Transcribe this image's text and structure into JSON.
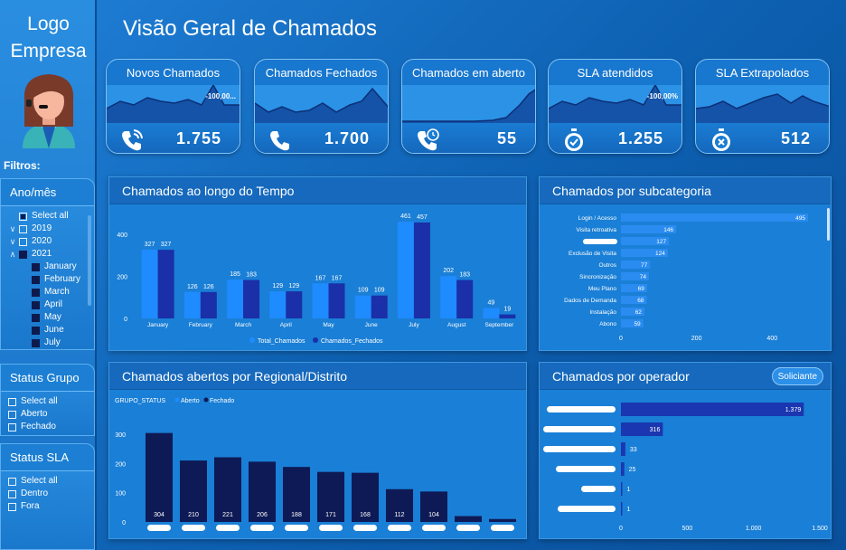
{
  "sidebar": {
    "logo_line1": "Logo",
    "logo_line2": "Empresa",
    "filters_title": "Filtros:"
  },
  "slicers": {
    "ano_mes": {
      "title": "Ano/mês",
      "items": [
        "Select all",
        "2019",
        "2020",
        "2021",
        "January",
        "February",
        "March",
        "April",
        "May",
        "June",
        "July"
      ]
    },
    "status_grupo": {
      "title": "Status Grupo",
      "items": [
        "Select all",
        "Aberto",
        "Fechado"
      ]
    },
    "status_sla": {
      "title": "Status SLA",
      "items": [
        "Select all",
        "Dentro",
        "Fora"
      ]
    }
  },
  "page_title": "Visão Geral de Chamados",
  "kpis": [
    {
      "title": "Novos Chamados",
      "value": "1.755",
      "label": "-100,00...",
      "icon": "phone-ringing-icon"
    },
    {
      "title": "Chamados Fechados",
      "value": "1.700",
      "label": "",
      "icon": "phone-icon"
    },
    {
      "title": "Chamados em aberto",
      "value": "55",
      "label": "",
      "icon": "phone-clock-icon"
    },
    {
      "title": "SLA atendidos",
      "value": "1.255",
      "label": "-100,00%",
      "icon": "stopwatch-check-icon"
    },
    {
      "title": "SLA Extrapolados",
      "value": "512",
      "label": "",
      "icon": "stopwatch-x-icon"
    }
  ],
  "colors": {
    "series_total": "#1e8bff",
    "series_fechados": "#1a2fa8",
    "bar_subcat": "#2a8cf0",
    "bar_regional": "#0e1a55",
    "bar_operador": "#1a36b0",
    "spark_fill": "#1453a8"
  },
  "panels": {
    "tempo": {
      "title": "Chamados ao longo do Tempo"
    },
    "subcategoria": {
      "title": "Chamados por subcategoria"
    },
    "regional": {
      "title": "Chamados abertos por Regional/Distrito"
    },
    "operador": {
      "title": "Chamados por operador",
      "button": "Soliciante"
    }
  },
  "chart_data": [
    {
      "type": "bar",
      "title": "Chamados ao longo do Tempo",
      "categories": [
        "January",
        "February",
        "March",
        "April",
        "May",
        "June",
        "July",
        "August",
        "September"
      ],
      "series": [
        {
          "name": "Total_Chamados",
          "values": [
            327,
            126,
            185,
            129,
            167,
            109,
            461,
            202,
            49
          ]
        },
        {
          "name": "Chamados_Fechados",
          "values": [
            327,
            126,
            183,
            129,
            167,
            109,
            457,
            183,
            19
          ]
        }
      ],
      "y_ticks": [
        "0",
        "200",
        "400"
      ],
      "ylim": [
        0,
        500
      ],
      "legend": "bottom"
    },
    {
      "type": "bar",
      "orientation": "horizontal",
      "title": "Chamados por subcategoria",
      "categories": [
        "Login / Acesso",
        "Visita retroativa",
        "",
        "Exclusão de Visita",
        "Outros",
        "Sincronização",
        "Meu Plano",
        "Dados de Demanda",
        "Instalação",
        "Abono"
      ],
      "values": [
        495,
        146,
        127,
        124,
        77,
        74,
        69,
        68,
        62,
        59
      ],
      "x_ticks": [
        "0",
        "200",
        "400"
      ],
      "xlim": [
        0,
        550
      ]
    },
    {
      "type": "bar",
      "title": "Chamados abertos por Regional/Distrito",
      "legend_title": "GRUPO_STATUS",
      "legend": [
        "Aberto",
        "Fechado"
      ],
      "values": [
        304,
        210,
        221,
        206,
        188,
        171,
        168,
        112,
        104,
        20,
        10
      ],
      "labels": [
        "304",
        "210",
        "221",
        "206",
        "188",
        "171",
        "168",
        "112",
        "104",
        "",
        ""
      ],
      "y_ticks": [
        "0",
        "100",
        "200",
        "300"
      ],
      "ylim": [
        0,
        340
      ]
    },
    {
      "type": "bar",
      "orientation": "horizontal",
      "title": "Chamados por operador",
      "values": [
        1379,
        316,
        33,
        25,
        1,
        1
      ],
      "labels": [
        "1.379",
        "316",
        "33",
        "25",
        "1",
        "1"
      ],
      "x_ticks": [
        "0",
        "500",
        "1.000",
        "1.500"
      ],
      "xlim": [
        0,
        1500
      ]
    }
  ]
}
